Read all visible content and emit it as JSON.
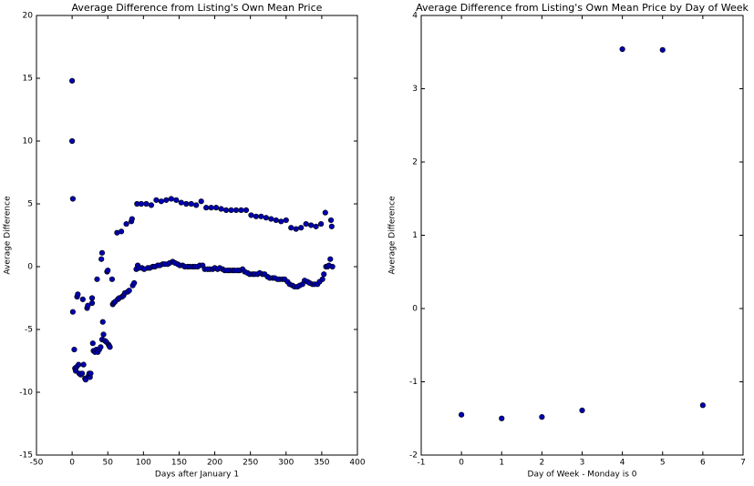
{
  "chart_data": [
    {
      "type": "scatter",
      "title": "Average Difference from Listing's Own Mean Price",
      "x_label": "Days after January 1",
      "y_label": "Average Difference",
      "color": "#0000b0",
      "xlim": [
        -50,
        400
      ],
      "xticks": [
        -50,
        0,
        50,
        100,
        150,
        200,
        250,
        300,
        350,
        400
      ],
      "ylim": [
        -15,
        20
      ],
      "yticks": [
        -15,
        -10,
        -5,
        0,
        5,
        10,
        15,
        20
      ],
      "x": [
        0,
        0,
        1,
        1,
        3,
        4,
        5,
        6,
        7,
        8,
        9,
        10,
        12,
        14,
        15,
        16,
        18,
        19,
        21,
        22,
        23,
        24,
        25,
        26,
        28,
        28,
        29,
        30,
        32,
        34,
        35,
        36,
        38,
        40,
        41,
        42,
        42,
        43,
        44,
        46,
        48,
        49,
        50,
        51,
        52,
        53,
        56,
        57,
        58,
        60,
        63,
        64,
        66,
        69,
        70,
        72,
        74,
        76,
        78,
        80,
        83,
        84,
        85,
        87,
        90,
        91,
        92,
        94,
        97,
        98,
        101,
        104,
        106,
        109,
        111,
        113,
        116,
        118,
        120,
        123,
        125,
        127,
        130,
        132,
        134,
        137,
        139,
        141,
        144,
        146,
        148,
        151,
        153,
        155,
        158,
        160,
        162,
        165,
        167,
        169,
        172,
        174,
        176,
        179,
        181,
        183,
        186,
        188,
        190,
        193,
        195,
        197,
        200,
        202,
        204,
        207,
        209,
        211,
        214,
        216,
        218,
        221,
        223,
        225,
        228,
        230,
        232,
        235,
        237,
        239,
        242,
        244,
        246,
        249,
        251,
        253,
        256,
        258,
        260,
        263,
        265,
        267,
        270,
        272,
        274,
        277,
        279,
        281,
        284,
        286,
        288,
        291,
        293,
        295,
        298,
        300,
        302,
        305,
        307,
        309,
        312,
        314,
        316,
        319,
        321,
        323,
        326,
        328,
        330,
        333,
        335,
        337,
        340,
        342,
        344,
        347,
        349,
        351,
        353,
        355,
        356,
        358,
        360,
        362,
        363,
        364,
        365
      ],
      "values": [
        14.8,
        10,
        5.4,
        -3.6,
        -6.6,
        -8.1,
        -8.3,
        -8.0,
        -2.4,
        -2.2,
        -7.8,
        -8.5,
        -8.6,
        -8.5,
        -2.6,
        -7.8,
        -8.9,
        -9.0,
        -3.3,
        -3.1,
        -8.7,
        -8.5,
        -8.8,
        -8.5,
        -2.5,
        -2.9,
        -6.1,
        -6.7,
        -6.8,
        -6.6,
        -1.0,
        -6.8,
        -6.6,
        -6.4,
        0.6,
        1.1,
        -5.8,
        -4.4,
        -5.4,
        -5.9,
        -6.0,
        -0.4,
        -0.3,
        -6.2,
        -6.3,
        -6.4,
        -1.0,
        -3.0,
        -2.9,
        -2.8,
        2.7,
        -2.6,
        -2.5,
        2.8,
        -2.4,
        -2.3,
        -2.1,
        3.4,
        -2.0,
        -1.9,
        3.6,
        3.8,
        -1.5,
        -1.3,
        -0.2,
        5.0,
        0.1,
        -0.1,
        5.0,
        -0.1,
        -0.2,
        5.0,
        -0.1,
        -0.1,
        4.9,
        0.0,
        0.0,
        5.3,
        0.1,
        0.1,
        5.2,
        0.2,
        0.2,
        5.3,
        0.2,
        0.3,
        5.4,
        0.4,
        0.3,
        5.3,
        0.2,
        0.1,
        5.1,
        0.1,
        0.0,
        5.0,
        0.0,
        0.0,
        5.0,
        0.0,
        0.0,
        4.9,
        0.0,
        0.1,
        5.2,
        0.1,
        -0.2,
        4.7,
        -0.2,
        -0.2,
        4.7,
        -0.2,
        -0.1,
        4.7,
        -0.2,
        -0.1,
        4.6,
        -0.2,
        -0.3,
        4.5,
        -0.3,
        -0.3,
        4.5,
        -0.3,
        -0.3,
        4.5,
        -0.3,
        -0.3,
        4.5,
        -0.2,
        -0.4,
        4.5,
        -0.5,
        -0.6,
        4.1,
        -0.6,
        -0.6,
        4.0,
        -0.6,
        -0.5,
        4.0,
        -0.6,
        -0.6,
        3.9,
        -0.8,
        -0.9,
        3.8,
        -0.9,
        -0.9,
        3.7,
        -1.0,
        -1.0,
        3.6,
        -1.0,
        -1.0,
        3.7,
        -1.2,
        -1.4,
        3.1,
        -1.5,
        -1.6,
        3.0,
        -1.6,
        -1.5,
        3.1,
        -1.4,
        -1.1,
        3.4,
        -1.2,
        -1.3,
        3.3,
        -1.4,
        -1.4,
        3.2,
        -1.4,
        -1.2,
        3.4,
        -1.0,
        -0.6,
        4.3,
        0.0,
        0.0,
        0.1,
        0.6,
        3.7,
        3.2,
        0.0
      ]
    },
    {
      "type": "scatter",
      "title": "Average Difference from Listing's Own Mean Price by Day of Week",
      "x_label": "Day of Week - Monday is 0",
      "y_label": "Average Difference",
      "color": "#0000b0",
      "xlim": [
        -1,
        7
      ],
      "xticks": [
        -1,
        0,
        1,
        2,
        3,
        4,
        5,
        6,
        7
      ],
      "ylim": [
        -2,
        4
      ],
      "yticks": [
        -2,
        -1,
        0,
        1,
        2,
        3,
        4
      ],
      "x": [
        0,
        1,
        2,
        3,
        4,
        5,
        6
      ],
      "values": [
        -1.45,
        -1.5,
        -1.48,
        -1.39,
        3.54,
        3.53,
        -1.32
      ]
    }
  ]
}
